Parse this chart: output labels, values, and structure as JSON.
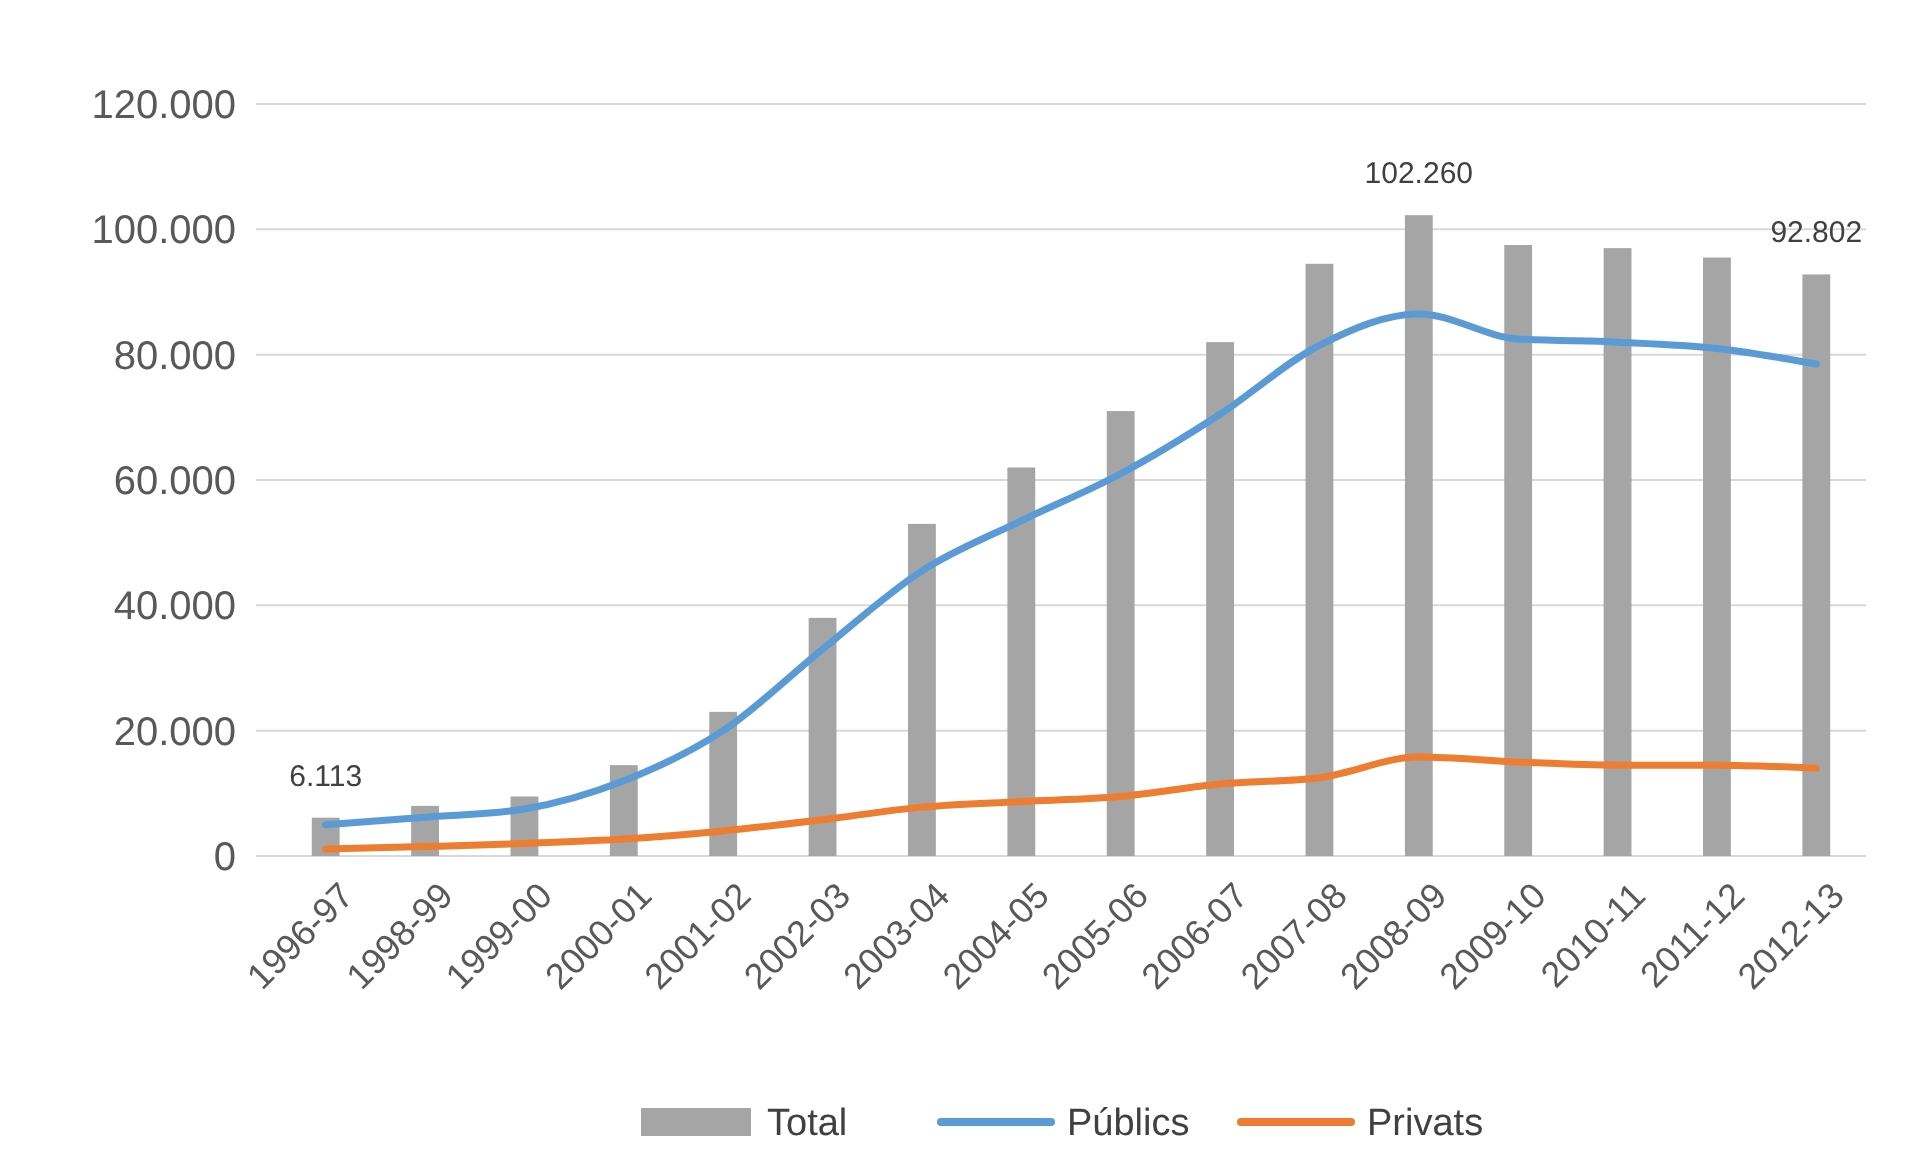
{
  "chart_data": {
    "type": "bar",
    "categories": [
      "1996-97",
      "1998-99",
      "1999-00",
      "2000-01",
      "2001-02",
      "2002-03",
      "2003-04",
      "2004-05",
      "2005-06",
      "2006-07",
      "2007-08",
      "2008-09",
      "2009-10",
      "2010-11",
      "2011-12",
      "2012-13"
    ],
    "series": [
      {
        "name": "Total",
        "color": "#a5a5a5",
        "values": [
          6113,
          8000,
          9500,
          14500,
          23000,
          38000,
          53000,
          62000,
          71000,
          82000,
          94500,
          102260,
          97500,
          97000,
          95500,
          92802
        ],
        "value_labels": [
          "6.113",
          null,
          null,
          null,
          null,
          null,
          null,
          null,
          null,
          null,
          null,
          "102.260",
          null,
          null,
          null,
          "92.802"
        ]
      },
      {
        "name": "Públics",
        "type": "line",
        "color": "#5b9bd5",
        "values": [
          5000,
          6200,
          7500,
          12000,
          20000,
          33000,
          45500,
          53500,
          61000,
          70500,
          81500,
          86500,
          82500,
          82000,
          81000,
          78500
        ]
      },
      {
        "name": "Privats",
        "type": "line",
        "color": "#ed7d31",
        "values": [
          1100,
          1500,
          2000,
          2700,
          4000,
          5800,
          7800,
          8700,
          9500,
          11500,
          12500,
          15800,
          15000,
          14500,
          14500,
          14000
        ]
      }
    ],
    "ylim": [
      0,
      120000
    ],
    "yticks": [
      {
        "value": 0,
        "label": "0"
      },
      {
        "value": 20000,
        "label": "20.000"
      },
      {
        "value": 40000,
        "label": "40.000"
      },
      {
        "value": 60000,
        "label": "60.000"
      },
      {
        "value": 80000,
        "label": "80.000"
      },
      {
        "value": 100000,
        "label": "100.000"
      },
      {
        "value": 120000,
        "label": "120.000"
      }
    ],
    "grid": "y",
    "legend": "bottom",
    "marker": "none",
    "line_style": "solid"
  }
}
